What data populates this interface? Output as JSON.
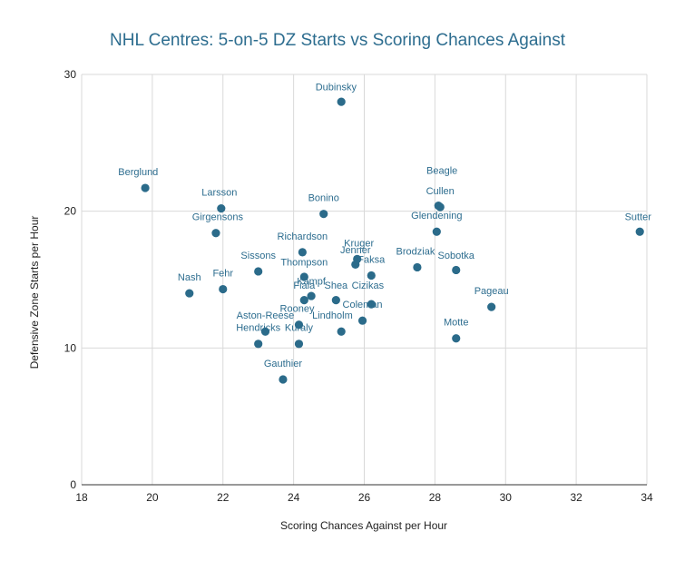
{
  "chart_data": {
    "type": "scatter",
    "title": "NHL Centres: 5-on-5 DZ Starts vs Scoring Chances Against",
    "xlabel": "Scoring Chances Against per Hour",
    "ylabel": "Defensive Zone Starts per Hour",
    "xlim": [
      18,
      34
    ],
    "ylim": [
      0,
      30
    ],
    "xticks": [
      "18",
      "20",
      "22",
      "24",
      "26",
      "28",
      "30",
      "32",
      "34"
    ],
    "yticks": [
      "0",
      "10",
      "20",
      "30"
    ],
    "grid": true,
    "marker_color": "#2b6b8a",
    "points": [
      {
        "name": "Dubinsky",
        "x": 25.35,
        "y": 28.0
      },
      {
        "name": "Berglund",
        "x": 19.8,
        "y": 21.7
      },
      {
        "name": "Larsson",
        "x": 21.95,
        "y": 20.2
      },
      {
        "name": "Girgensons",
        "x": 21.8,
        "y": 18.4
      },
      {
        "name": "Bonino",
        "x": 24.85,
        "y": 19.8
      },
      {
        "name": "Beagle",
        "x": 28.1,
        "y": 20.4
      },
      {
        "name": "Cullen",
        "x": 28.15,
        "y": 20.3
      },
      {
        "name": "Glendening",
        "x": 28.05,
        "y": 18.5
      },
      {
        "name": "Sutter",
        "x": 33.8,
        "y": 18.5
      },
      {
        "name": "Richardson",
        "x": 24.25,
        "y": 17.0
      },
      {
        "name": "Kruger",
        "x": 25.8,
        "y": 16.5
      },
      {
        "name": "Jenner",
        "x": 25.75,
        "y": 16.1
      },
      {
        "name": "Faksa",
        "x": 26.2,
        "y": 15.3
      },
      {
        "name": "Thompson",
        "x": 24.3,
        "y": 15.2
      },
      {
        "name": "Sissons",
        "x": 23.0,
        "y": 15.6
      },
      {
        "name": "Brodziak",
        "x": 27.5,
        "y": 15.9
      },
      {
        "name": "Sobotka",
        "x": 28.6,
        "y": 15.7
      },
      {
        "name": "Nash",
        "x": 21.05,
        "y": 14.0
      },
      {
        "name": "Fehr",
        "x": 22.0,
        "y": 14.3
      },
      {
        "name": "Kampf",
        "x": 24.5,
        "y": 13.8
      },
      {
        "name": "Fiala",
        "x": 24.3,
        "y": 13.5
      },
      {
        "name": "Shea",
        "x": 25.2,
        "y": 13.5
      },
      {
        "name": "Cizikas",
        "x": 26.2,
        "y": 13.2
      },
      {
        "name": "Pageau",
        "x": 29.6,
        "y": 13.0
      },
      {
        "name": "Rooney",
        "x": 24.15,
        "y": 11.7
      },
      {
        "name": "Coleman",
        "x": 25.95,
        "y": 12.0
      },
      {
        "name": "Lindholm",
        "x": 25.35,
        "y": 11.2
      },
      {
        "name": "Aston-Reese",
        "x": 23.2,
        "y": 11.2
      },
      {
        "name": "Hendricks",
        "x": 23.0,
        "y": 10.3
      },
      {
        "name": "Kuraly",
        "x": 24.15,
        "y": 10.3
      },
      {
        "name": "Motte",
        "x": 28.6,
        "y": 10.7
      },
      {
        "name": "Gauthier",
        "x": 23.7,
        "y": 7.7
      }
    ],
    "labels": [
      {
        "text": "Dubinsky",
        "x": 25.2,
        "y": 29.1
      },
      {
        "text": "Berglund",
        "x": 19.6,
        "y": 22.9
      },
      {
        "text": "Larsson",
        "x": 21.9,
        "y": 21.4
      },
      {
        "text": "Girgensons",
        "x": 21.85,
        "y": 19.6
      },
      {
        "text": "Bonino",
        "x": 24.85,
        "y": 21.0
      },
      {
        "text": "Beagle",
        "x": 28.2,
        "y": 23.0
      },
      {
        "text": "Cullen",
        "x": 28.15,
        "y": 21.5
      },
      {
        "text": "Glendening",
        "x": 28.05,
        "y": 19.7
      },
      {
        "text": "Sutter",
        "x": 33.75,
        "y": 19.6
      },
      {
        "text": "Richardson",
        "x": 24.25,
        "y": 18.2
      },
      {
        "text": "Kruger",
        "x": 25.85,
        "y": 17.7
      },
      {
        "text": "Jenner",
        "x": 25.75,
        "y": 17.2
      },
      {
        "text": "Faksa",
        "x": 26.2,
        "y": 16.5
      },
      {
        "text": "Thompson",
        "x": 24.3,
        "y": 16.3
      },
      {
        "text": "Sissons",
        "x": 23.0,
        "y": 16.8
      },
      {
        "text": "Brodziak",
        "x": 27.45,
        "y": 17.1
      },
      {
        "text": "Sobotka",
        "x": 28.6,
        "y": 16.8
      },
      {
        "text": "Nash",
        "x": 21.05,
        "y": 15.2
      },
      {
        "text": "Fehr",
        "x": 22.0,
        "y": 15.5
      },
      {
        "text": "Kampf",
        "x": 24.5,
        "y": 14.9
      },
      {
        "text": "Fiala",
        "x": 24.3,
        "y": 14.6
      },
      {
        "text": "Shea",
        "x": 25.2,
        "y": 14.6
      },
      {
        "text": "Cizikas",
        "x": 26.1,
        "y": 14.6
      },
      {
        "text": "Pageau",
        "x": 29.6,
        "y": 14.2
      },
      {
        "text": "Rooney",
        "x": 24.1,
        "y": 12.9
      },
      {
        "text": "Coleman",
        "x": 25.95,
        "y": 13.2
      },
      {
        "text": "Lindholm",
        "x": 25.1,
        "y": 12.4
      },
      {
        "text": "Aston-Reese",
        "x": 23.2,
        "y": 12.4
      },
      {
        "text": "Hendricks",
        "x": 23.0,
        "y": 11.5
      },
      {
        "text": "Kuraly",
        "x": 24.15,
        "y": 11.5
      },
      {
        "text": "Motte",
        "x": 28.6,
        "y": 11.9
      },
      {
        "text": "Gauthier",
        "x": 23.7,
        "y": 8.9
      }
    ]
  }
}
